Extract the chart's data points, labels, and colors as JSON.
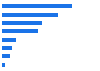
{
  "values": [
    100,
    80,
    58,
    52,
    20,
    14,
    11,
    5
  ],
  "bar_color": "#1a73e8",
  "background_color": "#ffffff",
  "xlim": [
    0,
    115
  ],
  "bar_height": 0.45,
  "n_bars": 8
}
